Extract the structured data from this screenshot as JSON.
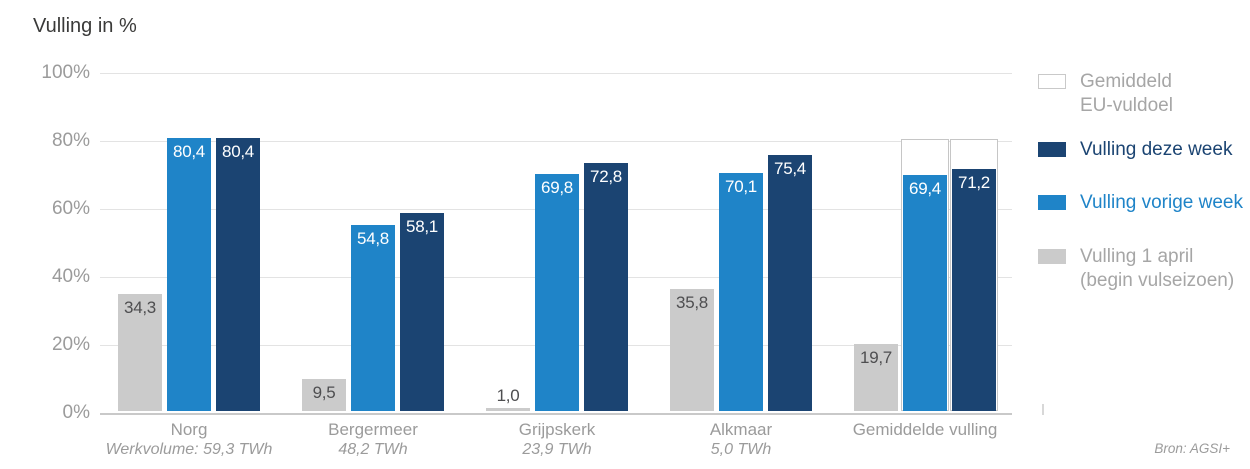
{
  "title": "Vulling in %",
  "source": "Bron: AGSI+",
  "colors": {
    "dark_blue": "#1b4472",
    "light_blue": "#1f84c8",
    "gray_bar": "#cbcbcb",
    "gridline": "#e3e3e3",
    "baseline": "#c9c9c9",
    "axis_text": "#9b9b9b",
    "title_text": "#3a3a39",
    "gray_bar_label": "#4e4e50",
    "legend_gray_text": "#a6a6a6",
    "eu_outline_border": "#c6c6c6"
  },
  "legend": [
    {
      "id": "eu-vuldoel",
      "lines": [
        "Gemiddeld",
        "EU-vuldoel"
      ],
      "swatch_style": "outline",
      "swatch_color": "#ffffff",
      "swatch_border": "#c9c9c9",
      "text_color": "#a6a6a6"
    },
    {
      "id": "deze-week",
      "lines": [
        "Vulling deze week"
      ],
      "swatch_style": "fill",
      "swatch_color": "#1b4472",
      "text_color": "#1b4472"
    },
    {
      "id": "vorige-week",
      "lines": [
        "Vulling vorige week"
      ],
      "swatch_style": "fill",
      "swatch_color": "#1f84c8",
      "text_color": "#1f84c8"
    },
    {
      "id": "1-april",
      "lines": [
        "Vulling 1 april",
        "(begin vulseizoen)"
      ],
      "swatch_style": "fill",
      "swatch_color": "#cbcbcb",
      "text_color": "#a6a6a6"
    }
  ],
  "chart_data": {
    "type": "bar",
    "title": "Vulling in %",
    "ylabel": "Vulling in %",
    "ylim": [
      0,
      100
    ],
    "yticks": [
      "100%",
      "80%",
      "60%",
      "40%",
      "20%",
      "0%"
    ],
    "grid": true,
    "legend_position": "right",
    "categories": [
      {
        "id": "norg",
        "label": "Norg",
        "sublabel": "Werkvolume: 59,3 TWh"
      },
      {
        "id": "bergermeer",
        "label": "Bergermeer",
        "sublabel": "48,2 TWh"
      },
      {
        "id": "grijpskerk",
        "label": "Grijpskerk",
        "sublabel": "23,9 TWh"
      },
      {
        "id": "alkmaar",
        "label": "Alkmaar",
        "sublabel": "5,0 TWh"
      },
      {
        "id": "gemiddelde-vulling",
        "label": "Gemiddelde vulling",
        "sublabel": ""
      }
    ],
    "series": [
      {
        "id": "vulling-1-april",
        "name": "Vulling 1 april (begin vulseizoen)",
        "color": "#cbcbcb",
        "label_color": "#4e4e50",
        "values": [
          34.3,
          9.5,
          1.0,
          35.8,
          19.7
        ],
        "labels": [
          "34,3",
          "9,5",
          "1,0",
          "35,8",
          "19,7"
        ]
      },
      {
        "id": "vulling-vorige-week",
        "name": "Vulling vorige week",
        "color": "#1f84c8",
        "label_color": "#ffffff",
        "values": [
          80.4,
          54.8,
          69.8,
          70.1,
          69.4
        ],
        "labels": [
          "80,4",
          "54,8",
          "69,8",
          "70,1",
          "69,4"
        ]
      },
      {
        "id": "vulling-deze-week",
        "name": "Vulling deze week",
        "color": "#1b4472",
        "label_color": "#ffffff",
        "values": [
          80.4,
          58.1,
          72.8,
          75.4,
          71.2
        ],
        "labels": [
          "80,4",
          "58,1",
          "72,8",
          "75,4",
          "71,2"
        ]
      }
    ],
    "eu_target": {
      "name": "Gemiddeld EU-vuldoel",
      "value": 80,
      "applies_to_category": "gemiddelde-vulling",
      "applies_to_series": [
        "vulling-vorige-week",
        "vulling-deze-week"
      ]
    }
  }
}
